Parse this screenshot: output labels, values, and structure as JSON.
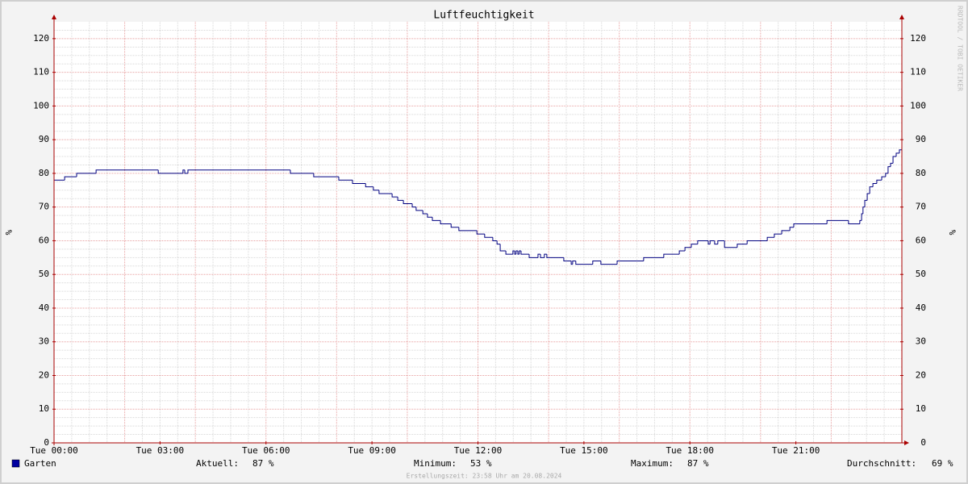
{
  "chart_data": {
    "type": "line",
    "title": "Luftfeuchtigkeit",
    "y_label": "%",
    "watermark": "RRDTOOL / TOBI OETIKER",
    "step": true,
    "grid": true,
    "xlim": [
      0,
      24
    ],
    "xticks": [
      {
        "value": 0,
        "label": "Tue 00:00"
      },
      {
        "value": 3,
        "label": "Tue 03:00"
      },
      {
        "value": 6,
        "label": "Tue 06:00"
      },
      {
        "value": 9,
        "label": "Tue 09:00"
      },
      {
        "value": 12,
        "label": "Tue 12:00"
      },
      {
        "value": 15,
        "label": "Tue 15:00"
      },
      {
        "value": 18,
        "label": "Tue 18:00"
      },
      {
        "value": 21,
        "label": "Tue 21:00"
      }
    ],
    "ylim": [
      0,
      125
    ],
    "yticks": [
      0,
      10,
      20,
      30,
      40,
      50,
      60,
      70,
      80,
      90,
      100,
      110,
      120
    ],
    "x": [
      0,
      0.3,
      0.64,
      1.19,
      2.95,
      3.65,
      3.7,
      3.79,
      6.69,
      7.35,
      8.06,
      8.45,
      8.82,
      9.04,
      9.2,
      9.57,
      9.73,
      9.89,
      10.14,
      10.25,
      10.44,
      10.57,
      10.71,
      10.94,
      11.24,
      11.46,
      11.97,
      12.19,
      12.42,
      12.54,
      12.63,
      12.79,
      12.99,
      13.04,
      13.08,
      13.13,
      13.17,
      13.22,
      13.45,
      13.7,
      13.77,
      13.88,
      13.95,
      14.43,
      14.64,
      14.68,
      14.77,
      15.25,
      15.48,
      15.94,
      16.69,
      17.26,
      17.7,
      17.86,
      18.04,
      18.22,
      18.52,
      18.57,
      18.7,
      18.79,
      18.98,
      19.34,
      19.62,
      20.19,
      20.39,
      20.6,
      20.83,
      20.94,
      21.88,
      22.49,
      22.81,
      22.86,
      22.9,
      22.95,
      23.02,
      23.09,
      23.18,
      23.29,
      23.43,
      23.54,
      23.61,
      23.68,
      23.75,
      23.84,
      23.93
    ],
    "series": [
      {
        "name": "Garten",
        "color": "#000080",
        "legend_color": "#0000a0",
        "values": [
          78,
          79,
          80,
          81,
          80,
          81,
          80,
          81,
          80,
          79,
          78,
          77,
          76,
          75,
          74,
          73,
          72,
          71,
          70,
          69,
          68,
          67,
          66,
          65,
          64,
          63,
          62,
          61,
          60,
          59,
          57,
          56,
          57,
          56,
          57,
          56,
          57,
          56,
          55,
          56,
          55,
          56,
          55,
          54,
          53,
          54,
          53,
          54,
          53,
          54,
          55,
          56,
          57,
          58,
          59,
          60,
          59,
          60,
          59,
          60,
          58,
          59,
          60,
          61,
          62,
          63,
          64,
          65,
          66,
          65,
          66,
          68,
          70,
          72,
          74,
          76,
          77,
          78,
          79,
          80,
          82,
          83,
          85,
          86,
          87
        ]
      }
    ],
    "legend_stats": [
      {
        "label": "Aktuell:",
        "text": "87 %"
      },
      {
        "label": "Minimum:",
        "text": "53 %"
      },
      {
        "label": "Maximum:",
        "text": "87 %"
      },
      {
        "label": "Durchschnitt:",
        "text": "69 %"
      }
    ],
    "footer": "Erstellungszeit: 23:58 Uhr am 20.08.2024"
  }
}
